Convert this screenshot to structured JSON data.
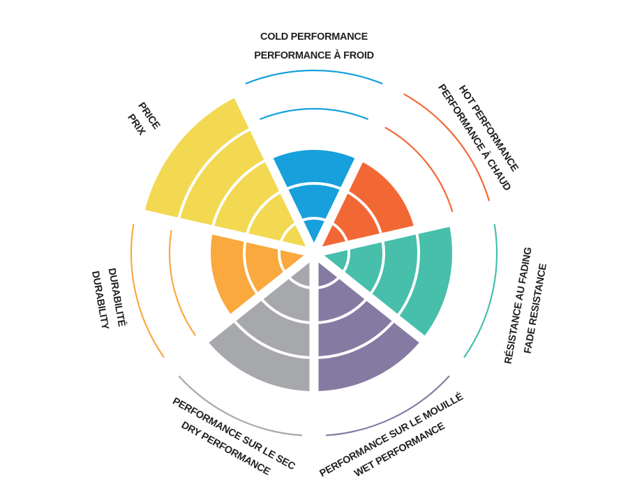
{
  "chart_data": {
    "type": "polar-area",
    "scale_max": 5,
    "rings": [
      1,
      2,
      3,
      4,
      5
    ],
    "categories": [
      {
        "label_en": "COLD PERFORMANCE",
        "label_fr": "PERFORMANCE À FROID",
        "value": 3,
        "color": "#17a0db"
      },
      {
        "label_en": "HOT PERFORMANCE",
        "label_fr": "PERFORMANCE À CHAUD",
        "value": 3,
        "color": "#f26835"
      },
      {
        "label_en": "FADE RESISTANCE",
        "label_fr": "RÉSISTANCE AU FADING",
        "value": 4,
        "color": "#47bfaa"
      },
      {
        "label_en": "WET PERFORMANCE",
        "label_fr": "PERFORMANCE SUR LE MOUILLÉ",
        "value": 4,
        "color": "#857ba2"
      },
      {
        "label_en": "DRY PERFORMANCE",
        "label_fr": "PERFORMANCE SUR LE SEC",
        "value": 4,
        "color": "#a7a8ab"
      },
      {
        "label_en": "DURABILITY",
        "label_fr": "DURABILITÉ",
        "value": 3,
        "color": "#f9a93e"
      },
      {
        "label_en": "PRICE",
        "label_fr": "PRIX",
        "value": 5,
        "color": "#f3d852"
      }
    ],
    "grid": true,
    "legend": "none"
  }
}
